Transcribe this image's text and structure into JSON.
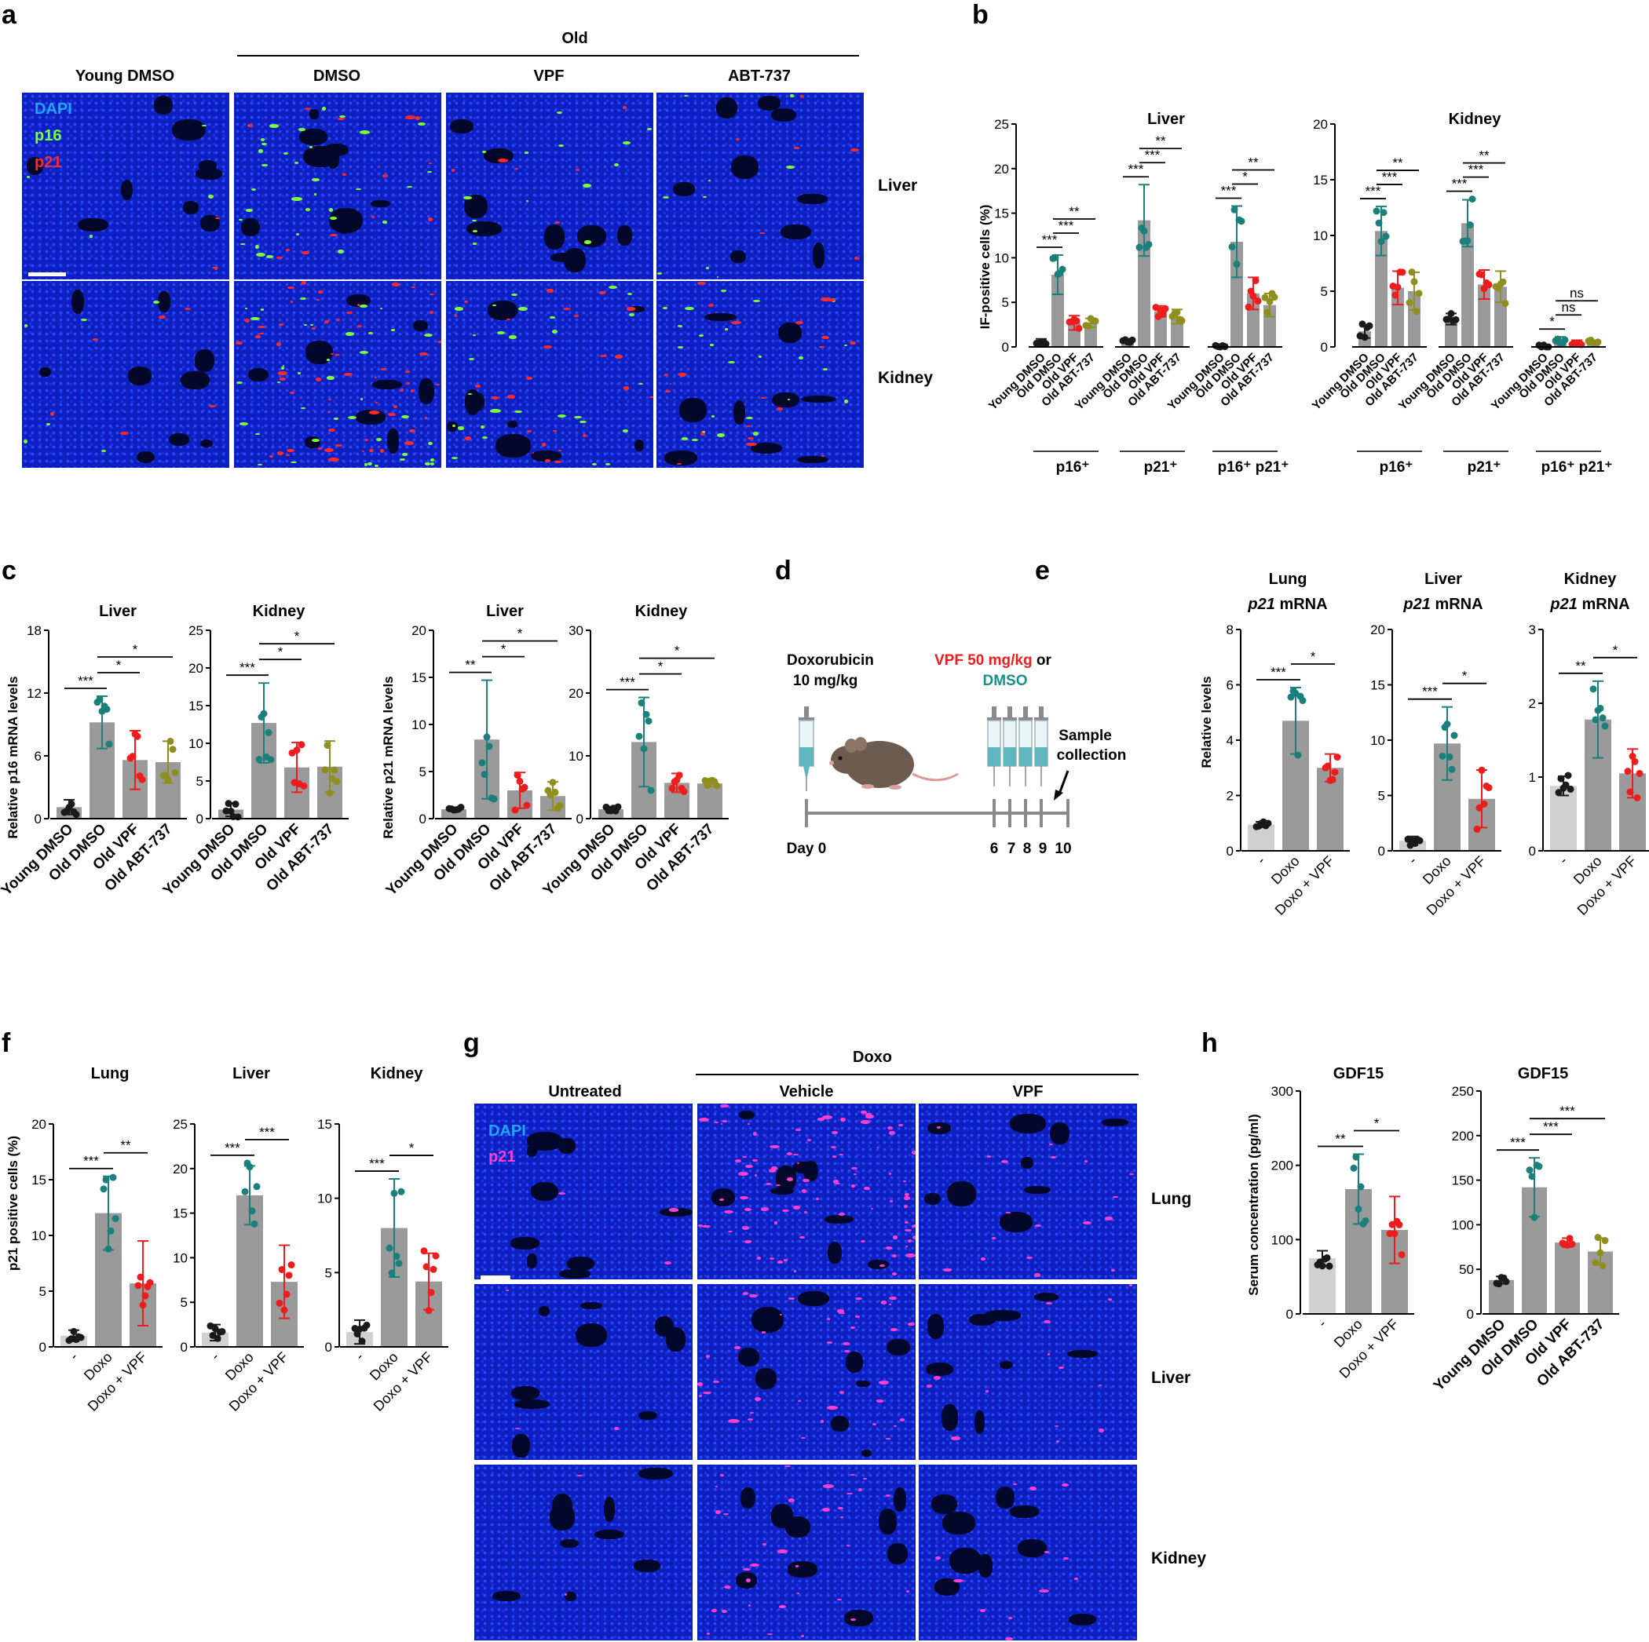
{
  "panel_letters": {
    "a": "a",
    "b": "b",
    "c": "c",
    "d": "d",
    "e": "e",
    "f": "f",
    "g": "g",
    "h": "h"
  },
  "colors": {
    "young": "#1a1a1a",
    "old_dmso": "#1b7f7c",
    "vpf": "#ee1c1c",
    "abt": "#8f8f1f",
    "bar": "#9a9a9a",
    "bar_light": "#d0d0d0",
    "dapi": "#1ea8ff",
    "p16": "#7cff3a",
    "p21_red": "#ff2a2a",
    "p21_magenta": "#ff3fd2",
    "vpf_text": "#ee1c1c",
    "dmso_text": "#1b8f8c"
  },
  "panel_a": {
    "group_header": "Old",
    "columns": [
      "Young DMSO",
      "DMSO",
      "VPF",
      "ABT-737"
    ],
    "rows": [
      "Liver",
      "Kidney"
    ],
    "legend": [
      "DAPI",
      "p16",
      "p21"
    ]
  },
  "panel_b": {
    "ylabel": "IF-positive cells (%)",
    "liver_title": "Liver",
    "kidney_title": "Kidney",
    "group_labels": [
      "p16⁺",
      "p21⁺",
      "p16⁺ p21⁺"
    ],
    "group_label_kidney": [
      "p16⁺",
      "p21⁺",
      "p16⁺ p21⁺"
    ]
  },
  "panel_c": {
    "ylabel_p16": "Relative p16 mRNA levels",
    "ylabel_p21": "Relative p21 mRNA levels",
    "titles": [
      "Liver",
      "Kidney",
      "Liver",
      "Kidney"
    ]
  },
  "panel_d": {
    "doxo_line1": "Doxorubicin",
    "doxo_line2": "10 mg/kg",
    "vpf_line": "VPF 50 mg/kg",
    "or": " or",
    "dmso": "DMSO",
    "sample_line1": "Sample",
    "sample_line2": "collection",
    "day0": "Day 0",
    "days": [
      "6",
      "7",
      "8",
      "9",
      "10"
    ]
  },
  "panel_e": {
    "ylabel": "Relative levels",
    "titles": [
      "Lung",
      "Liver",
      "Kidney"
    ],
    "subtitle_gene": "p21",
    "subtitle_rest": " mRNA"
  },
  "panel_f": {
    "ylabel": "p21 positive cells (%)",
    "titles": [
      "Lung",
      "Liver",
      "Kidney"
    ]
  },
  "panel_g": {
    "group_header": "Doxo",
    "columns": [
      "Untreated",
      "Vehicle",
      "VPF"
    ],
    "rows": [
      "Lung",
      "Liver",
      "Kidney"
    ],
    "legend": [
      "DAPI",
      "p21"
    ]
  },
  "panel_h": {
    "ylabel": "Serum concentration (pg/ml)",
    "titles": [
      "GDF15",
      "GDF15"
    ]
  },
  "chart_data": [
    {
      "id": "b_liver",
      "type": "bar",
      "title": "Liver",
      "ylabel": "IF-positive cells (%)",
      "ylim": [
        0,
        25
      ],
      "yticks": [
        0,
        5,
        10,
        15,
        20,
        25
      ],
      "categories": [
        "Young DMSO",
        "Old DMSO",
        "Old VPF",
        "Old ABT-737"
      ],
      "groups": [
        "p16⁺",
        "p21⁺",
        "p16⁺ p21⁺"
      ],
      "values": [
        [
          0.6,
          8.1,
          2.7,
          2.7
        ],
        [
          0.7,
          14.2,
          4.0,
          3.4
        ],
        [
          0.1,
          11.8,
          6.0,
          4.7
        ]
      ],
      "sd": [
        [
          0.3,
          2.2,
          0.8,
          0.5
        ],
        [
          0.2,
          4.0,
          0.6,
          0.8
        ],
        [
          0.1,
          4.0,
          1.8,
          1.3
        ]
      ],
      "sig": [
        [
          {
            "a": 0,
            "b": 1,
            "t": "***"
          },
          {
            "a": 1,
            "b": 2,
            "t": "***"
          },
          {
            "a": 1,
            "b": 3,
            "t": "**"
          }
        ],
        [
          {
            "a": 0,
            "b": 1,
            "t": "***"
          },
          {
            "a": 1,
            "b": 2,
            "t": "***"
          },
          {
            "a": 1,
            "b": 3,
            "t": "**"
          }
        ],
        [
          {
            "a": 0,
            "b": 1,
            "t": "***"
          },
          {
            "a": 1,
            "b": 2,
            "t": "*"
          },
          {
            "a": 1,
            "b": 3,
            "t": "**"
          }
        ]
      ]
    },
    {
      "id": "b_kidney",
      "type": "bar",
      "title": "Kidney",
      "ylabel": "",
      "ylim": [
        0,
        20
      ],
      "yticks": [
        0,
        5,
        10,
        15,
        20
      ],
      "categories": [
        "Young DMSO",
        "Old DMSO",
        "Old VPF",
        "Old ABT-737"
      ],
      "groups": [
        "p16⁺",
        "p21⁺",
        "p16⁺ p21⁺"
      ],
      "values": [
        [
          1.4,
          10.4,
          5.3,
          5.0
        ],
        [
          2.5,
          11.1,
          5.6,
          5.4
        ],
        [
          0.1,
          0.6,
          0.4,
          0.4
        ]
      ],
      "sd": [
        [
          0.6,
          2.2,
          1.5,
          1.7
        ],
        [
          0.5,
          2.1,
          1.3,
          1.4
        ],
        [
          0.1,
          0.3,
          0.2,
          0.2
        ]
      ],
      "sig": [
        [
          {
            "a": 0,
            "b": 1,
            "t": "***"
          },
          {
            "a": 1,
            "b": 2,
            "t": "***"
          },
          {
            "a": 1,
            "b": 3,
            "t": "**"
          }
        ],
        [
          {
            "a": 0,
            "b": 1,
            "t": "***"
          },
          {
            "a": 1,
            "b": 2,
            "t": "***"
          },
          {
            "a": 1,
            "b": 3,
            "t": "**"
          }
        ],
        [
          {
            "a": 0,
            "b": 1,
            "t": "*"
          },
          {
            "a": 1,
            "b": 2,
            "t": "ns"
          },
          {
            "a": 1,
            "b": 3,
            "t": "ns"
          }
        ]
      ]
    },
    {
      "id": "c_p16_liver",
      "type": "bar",
      "title": "Liver",
      "ylabel": "Relative p16 mRNA levels",
      "ylim": [
        0,
        18
      ],
      "yticks": [
        0,
        6,
        12,
        18
      ],
      "categories": [
        "Young DMSO",
        "Old DMSO",
        "Old VPF",
        "Old ABT-737"
      ],
      "values": [
        1.1,
        9.2,
        5.6,
        5.4
      ],
      "sd": [
        0.7,
        2.5,
        2.8,
        2.0
      ],
      "sig": [
        {
          "a": 0,
          "b": 1,
          "t": "***"
        },
        {
          "a": 1,
          "b": 2,
          "t": "*"
        },
        {
          "a": 1,
          "b": 3,
          "t": "*"
        }
      ]
    },
    {
      "id": "c_p16_kidney",
      "type": "bar",
      "title": "Kidney",
      "ylabel": "",
      "ylim": [
        0,
        25
      ],
      "yticks": [
        0,
        5,
        10,
        15,
        20,
        25
      ],
      "categories": [
        "Young DMSO",
        "Old DMSO",
        "Old VPF",
        "Old ABT-737"
      ],
      "values": [
        1.2,
        12.7,
        6.8,
        6.9
      ],
      "sd": [
        0.9,
        5.3,
        3.3,
        3.4
      ],
      "sig": [
        {
          "a": 0,
          "b": 1,
          "t": "***"
        },
        {
          "a": 1,
          "b": 2,
          "t": "*"
        },
        {
          "a": 1,
          "b": 3,
          "t": "*"
        }
      ]
    },
    {
      "id": "c_p21_liver",
      "type": "bar",
      "title": "Liver",
      "ylabel": "Relative p21 mRNA levels",
      "ylim": [
        0,
        20
      ],
      "yticks": [
        0,
        5,
        10,
        15,
        20
      ],
      "categories": [
        "Young DMSO",
        "Old DMSO",
        "Old VPF",
        "Old ABT-737"
      ],
      "values": [
        1.0,
        8.4,
        3.0,
        2.4
      ],
      "sd": [
        0.2,
        6.3,
        1.9,
        1.5
      ],
      "sig": [
        {
          "a": 0,
          "b": 1,
          "t": "**"
        },
        {
          "a": 1,
          "b": 2,
          "t": "*"
        },
        {
          "a": 1,
          "b": 3,
          "t": "*"
        }
      ]
    },
    {
      "id": "c_p21_kidney",
      "type": "bar",
      "title": "Kidney",
      "ylabel": "",
      "ylim": [
        0,
        30
      ],
      "yticks": [
        0,
        10,
        20,
        30
      ],
      "categories": [
        "Young DMSO",
        "Old DMSO",
        "Old VPF",
        "Old ABT-737"
      ],
      "values": [
        1.5,
        12.2,
        5.7,
        5.6
      ],
      "sd": [
        0.4,
        7.1,
        1.5,
        0.5
      ],
      "sig": [
        {
          "a": 0,
          "b": 1,
          "t": "***"
        },
        {
          "a": 1,
          "b": 2,
          "t": "*"
        },
        {
          "a": 1,
          "b": 3,
          "t": "*"
        }
      ]
    },
    {
      "id": "e_lung",
      "type": "bar",
      "title": "Lung",
      "ylabel": "Relative levels",
      "ylim": [
        0,
        8
      ],
      "yticks": [
        0,
        2,
        4,
        6,
        8
      ],
      "categories": [
        "-",
        "Doxo",
        "Doxo + VPF"
      ],
      "values": [
        0.95,
        4.7,
        3.0
      ],
      "sd": [
        0.1,
        1.2,
        0.5
      ],
      "sig": [
        {
          "a": 0,
          "b": 1,
          "t": "***"
        },
        {
          "a": 1,
          "b": 2,
          "t": "*"
        }
      ]
    },
    {
      "id": "e_liver",
      "type": "bar",
      "title": "Liver",
      "ylabel": "",
      "ylim": [
        0,
        20
      ],
      "yticks": [
        0,
        5,
        10,
        15,
        20
      ],
      "categories": [
        "-",
        "Doxo",
        "Doxo + VPF"
      ],
      "values": [
        0.9,
        9.7,
        4.7
      ],
      "sd": [
        0.4,
        3.3,
        2.6
      ],
      "sig": [
        {
          "a": 0,
          "b": 1,
          "t": "***"
        },
        {
          "a": 1,
          "b": 2,
          "t": "*"
        }
      ]
    },
    {
      "id": "e_kidney",
      "type": "bar",
      "title": "Kidney",
      "ylabel": "",
      "ylim": [
        0,
        3
      ],
      "yticks": [
        0,
        1,
        2,
        3
      ],
      "categories": [
        "-",
        "Doxo",
        "Doxo + VPF"
      ],
      "values": [
        0.88,
        1.78,
        1.05
      ],
      "sd": [
        0.13,
        0.52,
        0.33
      ],
      "sig": [
        {
          "a": 0,
          "b": 1,
          "t": "**"
        },
        {
          "a": 1,
          "b": 2,
          "t": "*"
        }
      ]
    },
    {
      "id": "f_lung",
      "type": "bar",
      "title": "Lung",
      "ylabel": "p21 positive cells (%)",
      "ylim": [
        0,
        20
      ],
      "yticks": [
        0,
        5,
        10,
        15,
        20
      ],
      "categories": [
        "-",
        "Doxo",
        "Doxo + VPF"
      ],
      "values": [
        1.0,
        12.0,
        5.7
      ],
      "sd": [
        0.5,
        3.3,
        3.8
      ],
      "sig": [
        {
          "a": 0,
          "b": 1,
          "t": "***"
        },
        {
          "a": 1,
          "b": 2,
          "t": "**"
        }
      ]
    },
    {
      "id": "f_liver",
      "type": "bar",
      "title": "Liver",
      "ylabel": "",
      "ylim": [
        0,
        25
      ],
      "yticks": [
        0,
        5,
        10,
        15,
        20,
        25
      ],
      "categories": [
        "-",
        "Doxo",
        "Doxo + VPF"
      ],
      "values": [
        1.6,
        17.0,
        7.3
      ],
      "sd": [
        0.9,
        3.3,
        4.1
      ],
      "sig": [
        {
          "a": 0,
          "b": 1,
          "t": "***"
        },
        {
          "a": 1,
          "b": 2,
          "t": "***"
        }
      ]
    },
    {
      "id": "f_kidney",
      "type": "bar",
      "title": "Kidney",
      "ylabel": "",
      "ylim": [
        0,
        15
      ],
      "yticks": [
        0,
        5,
        10,
        15
      ],
      "categories": [
        "-",
        "Doxo",
        "Doxo + VPF"
      ],
      "values": [
        1.0,
        8.0,
        4.4
      ],
      "sd": [
        0.8,
        3.3,
        1.9
      ],
      "sig": [
        {
          "a": 0,
          "b": 1,
          "t": "***"
        },
        {
          "a": 1,
          "b": 2,
          "t": "*"
        }
      ]
    },
    {
      "id": "h_doxo",
      "type": "bar",
      "title": "GDF15",
      "ylabel": "Serum concentration (pg/ml)",
      "ylim": [
        0,
        300
      ],
      "yticks": [
        0,
        100,
        200,
        300
      ],
      "categories": [
        "-",
        "Doxo",
        "Doxo + VPF"
      ],
      "values": [
        75,
        168,
        113
      ],
      "sd": [
        10,
        47,
        45
      ],
      "sig": [
        {
          "a": 0,
          "b": 1,
          "t": "**"
        },
        {
          "a": 1,
          "b": 2,
          "t": "*"
        }
      ]
    },
    {
      "id": "h_age",
      "type": "bar",
      "title": "GDF15",
      "ylabel": "",
      "ylim": [
        0,
        250
      ],
      "yticks": [
        0,
        50,
        100,
        150,
        200,
        250
      ],
      "categories": [
        "Young DMSO",
        "Old DMSO",
        "Old VPF",
        "Old ABT-737"
      ],
      "values": [
        38,
        142,
        80,
        70
      ],
      "sd": [
        4,
        33,
        5,
        15
      ],
      "sig": [
        {
          "a": 0,
          "b": 1,
          "t": "***"
        },
        {
          "a": 1,
          "b": 2,
          "t": "***"
        },
        {
          "a": 1,
          "b": 3,
          "t": "***"
        }
      ]
    }
  ]
}
